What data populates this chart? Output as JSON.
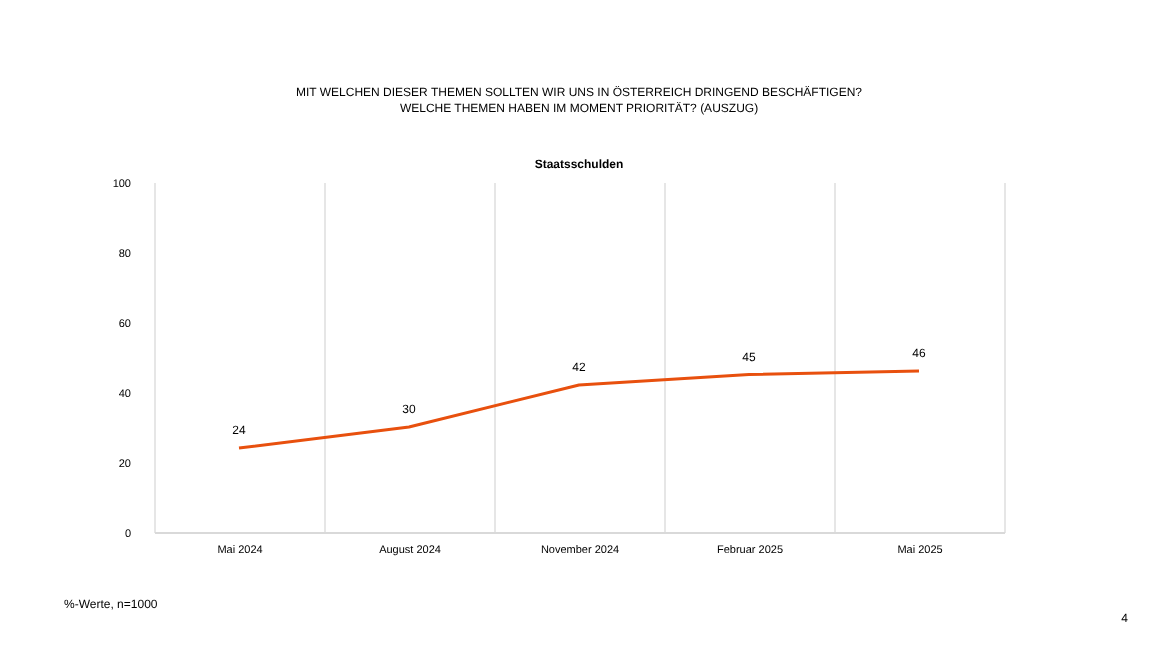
{
  "chart_data": {
    "type": "line",
    "title": [
      "MIT WELCHEN DIESER THEMEN SOLLTEN WIR UNS IN ÖSTERREICH DRINGEND BESCHÄFTIGEN?",
      "WELCHE THEMEN HABEN IM MOMENT PRIORITÄT? (AUSZUG)"
    ],
    "subtitle": "Staatsschulden",
    "categories": [
      "Mai 2024",
      "August 2024",
      "November 2024",
      "Februar 2025",
      "Mai 2025"
    ],
    "series": [
      {
        "color": "#e8500e",
        "values": [
          24,
          30,
          42,
          45,
          46
        ]
      }
    ],
    "data_labels": true,
    "ylim": [
      0,
      100
    ],
    "yticks": [
      0,
      20,
      40,
      60,
      80,
      100
    ],
    "grid": "x",
    "legend": false,
    "marker": "none",
    "annotations": [
      "%-Werte, n=1000",
      "4"
    ]
  }
}
